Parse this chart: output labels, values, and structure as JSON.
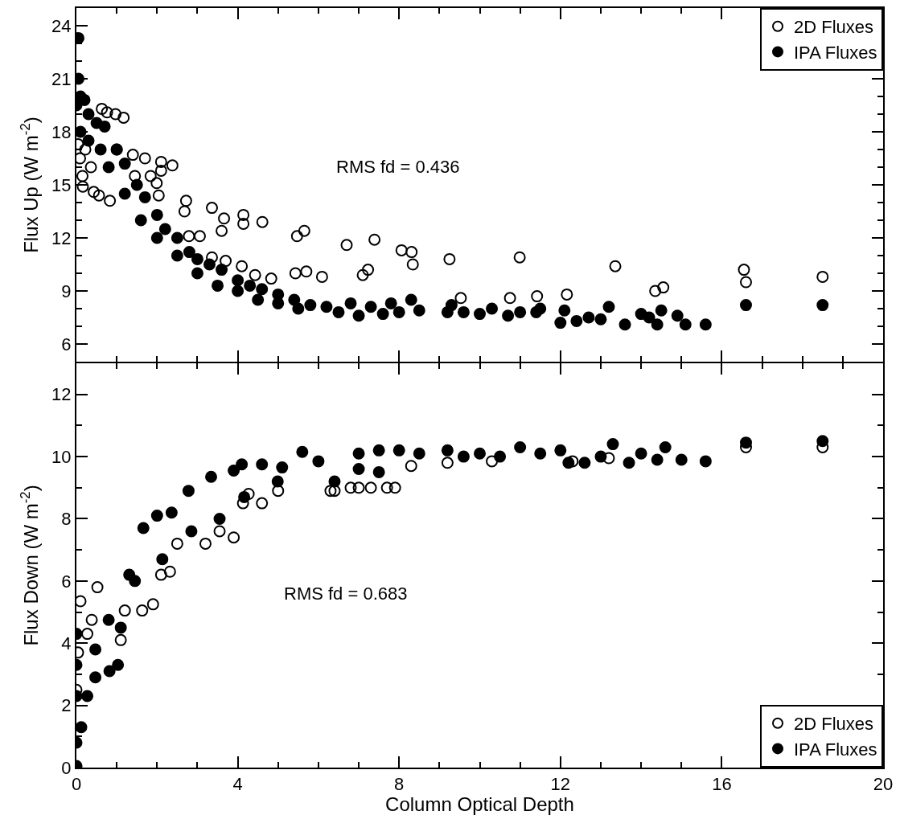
{
  "chart_data": [
    {
      "type": "scatter",
      "ylabel": "Flux Up (W m$^{-2}$)",
      "xlim": [
        0,
        20
      ],
      "xticks": [
        0,
        4,
        8,
        12,
        16,
        20
      ],
      "ylim": [
        5,
        25
      ],
      "yticks": [
        6,
        9,
        12,
        15,
        18,
        21,
        24
      ],
      "tick_labels": "y",
      "grid": false,
      "legend": "top right",
      "annotations": [
        "RMS fd = 0.436"
      ],
      "series": [
        {
          "name": "2D Fluxes",
          "color": "#000000",
          "marker": "circle-open",
          "x": [
            0.04,
            0.09,
            0.15,
            0.16,
            0.22,
            0.36,
            0.43,
            0.56,
            0.63,
            0.76,
            0.83,
            0.97,
            1.0,
            1.17,
            1.4,
            1.45,
            1.7,
            1.84,
            1.99,
            2.04,
            2.1,
            2.1,
            2.38,
            2.68,
            2.72,
            2.79,
            3.06,
            3.36,
            3.36,
            3.6,
            3.66,
            3.7,
            4.1,
            4.14,
            4.14,
            4.43,
            4.61,
            4.83,
            5.43,
            5.47,
            5.65,
            5.7,
            6.09,
            6.7,
            7.1,
            7.23,
            7.39,
            8.06,
            8.31,
            8.34,
            9.25,
            9.53,
            10.75,
            10.99,
            11.42,
            12.16,
            13.36,
            14.35,
            14.55,
            16.55,
            16.6,
            18.5
          ],
          "values": [
            17.3,
            16.5,
            15.5,
            14.9,
            17.0,
            16.0,
            14.6,
            14.4,
            19.3,
            19.1,
            14.1,
            19.0,
            17.0,
            18.8,
            16.7,
            15.5,
            16.5,
            15.5,
            15.1,
            14.4,
            16.3,
            15.8,
            16.1,
            13.5,
            14.1,
            12.1,
            12.1,
            13.7,
            10.9,
            12.4,
            13.1,
            10.7,
            10.4,
            12.8,
            13.3,
            9.9,
            12.9,
            9.7,
            10.0,
            12.1,
            12.4,
            10.1,
            9.8,
            11.6,
            9.9,
            10.2,
            11.9,
            11.3,
            11.2,
            10.5,
            10.8,
            8.6,
            8.6,
            10.9,
            8.7,
            8.8,
            10.4,
            9.0,
            9.2,
            10.2,
            9.5,
            9.8
          ]
        },
        {
          "name": "IPA Fluxes",
          "color": "#000000",
          "marker": "circle",
          "x": [
            0.05,
            0.05,
            0.0,
            0.1,
            0.1,
            0.2,
            0.3,
            0.3,
            0.5,
            0.6,
            0.7,
            0.8,
            1.0,
            1.2,
            1.2,
            1.5,
            1.6,
            1.7,
            2.0,
            2.0,
            2.2,
            2.5,
            2.5,
            2.8,
            3.0,
            3.0,
            3.3,
            3.5,
            3.6,
            4.0,
            4.0,
            4.3,
            4.5,
            4.6,
            5.0,
            5.0,
            5.4,
            5.5,
            5.8,
            6.2,
            6.5,
            6.8,
            7.0,
            7.3,
            7.6,
            7.8,
            8.0,
            8.3,
            8.5,
            9.2,
            9.3,
            9.6,
            10.0,
            10.3,
            10.7,
            11.0,
            11.4,
            11.5,
            12.0,
            12.1,
            12.4,
            12.7,
            13.0,
            13.2,
            13.6,
            14.0,
            14.2,
            14.4,
            14.5,
            14.9,
            15.1,
            15.6,
            16.6,
            18.5
          ],
          "values": [
            23.3,
            21.0,
            19.5,
            20.0,
            18.0,
            19.8,
            19.0,
            17.5,
            18.5,
            17.0,
            18.3,
            16.0,
            17.0,
            16.2,
            14.5,
            15.0,
            13.0,
            14.3,
            13.3,
            12.0,
            12.5,
            12.0,
            11.0,
            11.2,
            10.8,
            10.0,
            10.5,
            9.3,
            10.2,
            9.6,
            9.0,
            9.3,
            8.5,
            9.1,
            8.8,
            8.3,
            8.5,
            8.0,
            8.2,
            8.1,
            7.8,
            8.3,
            7.6,
            8.1,
            7.7,
            8.3,
            7.8,
            8.5,
            7.9,
            7.8,
            8.2,
            7.8,
            7.7,
            8.0,
            7.6,
            7.8,
            7.8,
            8.0,
            7.2,
            7.9,
            7.3,
            7.5,
            7.4,
            8.1,
            7.1,
            7.7,
            7.5,
            7.1,
            7.9,
            7.6,
            7.1,
            7.1,
            8.2,
            8.2
          ]
        }
      ]
    },
    {
      "type": "scatter",
      "xlabel": "Column Optical Depth",
      "ylabel": "Flux Down (W m$^{-2}$)",
      "xlim": [
        0,
        20
      ],
      "xticks": [
        0,
        4,
        8,
        12,
        16,
        20
      ],
      "ylim": [
        0,
        13
      ],
      "yticks": [
        0,
        2,
        4,
        6,
        8,
        10,
        12
      ],
      "grid": false,
      "legend": "bottom right",
      "annotations": [
        "RMS fd = 0.683"
      ],
      "series": [
        {
          "name": "2D Fluxes",
          "color": "#000000",
          "marker": "circle-open",
          "x": [
            0.0,
            0.04,
            0.1,
            0.27,
            0.38,
            0.52,
            1.1,
            1.2,
            1.63,
            1.9,
            2.1,
            2.32,
            2.5,
            3.2,
            3.55,
            3.9,
            4.13,
            4.27,
            4.6,
            5.0,
            6.3,
            6.4,
            6.8,
            7.0,
            7.3,
            7.7,
            7.9,
            8.3,
            9.2,
            10.3,
            12.3,
            13.2,
            16.6,
            18.5
          ],
          "values": [
            2.5,
            3.7,
            5.35,
            4.3,
            4.75,
            5.8,
            4.1,
            5.05,
            5.05,
            5.25,
            6.2,
            6.3,
            7.2,
            7.2,
            7.6,
            7.4,
            8.5,
            8.8,
            8.5,
            8.9,
            8.9,
            8.9,
            9.0,
            9.0,
            9.0,
            9.0,
            9.0,
            9.7,
            9.8,
            9.85,
            9.85,
            9.95,
            10.3,
            10.3
          ]
        },
        {
          "name": "IPA Fluxes",
          "color": "#000000",
          "marker": "circle",
          "x": [
            0.0,
            0.0,
            0.0,
            0.0,
            0.0,
            0.12,
            0.27,
            0.47,
            0.47,
            0.8,
            0.82,
            1.03,
            1.1,
            1.31,
            1.45,
            1.66,
            2.0,
            2.13,
            2.36,
            2.78,
            2.85,
            3.34,
            3.55,
            3.9,
            4.1,
            4.16,
            4.6,
            4.99,
            5.1,
            5.6,
            6.0,
            6.4,
            7.0,
            7.0,
            7.5,
            7.5,
            8.0,
            8.5,
            9.2,
            9.6,
            10.0,
            10.5,
            11.0,
            11.5,
            12.0,
            12.2,
            12.6,
            13.0,
            13.3,
            13.7,
            14.0,
            14.4,
            14.6,
            15.0,
            15.6,
            16.6,
            18.5
          ],
          "values": [
            0.05,
            0.8,
            2.3,
            3.3,
            4.3,
            1.3,
            2.3,
            2.9,
            3.8,
            4.75,
            3.1,
            3.3,
            4.5,
            6.2,
            6.0,
            7.7,
            8.1,
            6.7,
            8.2,
            8.9,
            7.6,
            9.35,
            8.0,
            9.55,
            9.75,
            8.7,
            9.75,
            9.2,
            9.65,
            10.15,
            9.85,
            9.2,
            10.1,
            9.6,
            10.2,
            9.5,
            10.2,
            10.1,
            10.2,
            10.0,
            10.1,
            10.0,
            10.3,
            10.1,
            10.2,
            9.8,
            9.8,
            10.0,
            10.4,
            9.8,
            10.1,
            9.9,
            10.3,
            9.9,
            9.85,
            10.45,
            10.5
          ]
        }
      ]
    }
  ]
}
